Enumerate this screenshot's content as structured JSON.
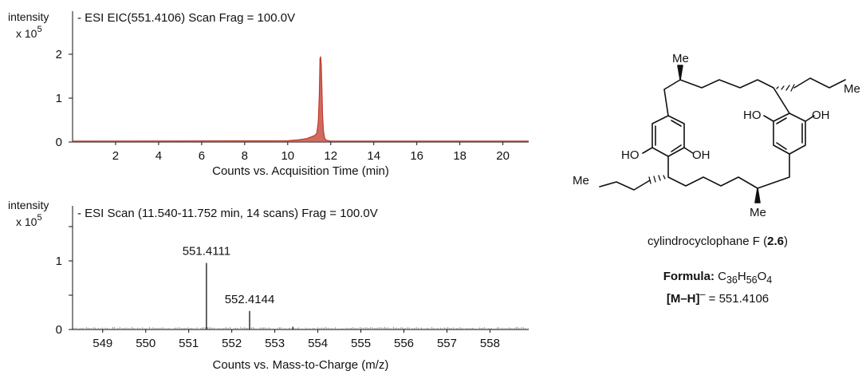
{
  "chart_data": [
    {
      "type": "area",
      "title": "- ESI EIC(551.4106) Scan Frag = 100.0V",
      "xlabel": "Counts vs. Acquisition Time (min)",
      "ylabel_line1": "intensity",
      "ylabel_line2": "x 10",
      "ylabel_exp": "5",
      "xlim": [
        0,
        21.2
      ],
      "ylim": [
        0,
        2.2
      ],
      "x_ticks": [
        2,
        4,
        6,
        8,
        10,
        12,
        14,
        16,
        18,
        20
      ],
      "y_ticks": [
        0,
        1,
        2
      ],
      "color": "#c0392b",
      "series": [
        {
          "x": [
            0,
            10.0,
            10.5,
            10.9,
            11.1,
            11.25,
            11.35,
            11.42,
            11.47,
            11.5,
            11.53,
            11.56,
            11.59,
            11.62,
            11.66,
            11.72,
            11.8,
            12.0,
            21.2
          ],
          "y": [
            0.02,
            0.03,
            0.05,
            0.08,
            0.12,
            0.15,
            0.2,
            0.45,
            1.1,
            1.9,
            1.95,
            1.75,
            1.2,
            0.6,
            0.25,
            0.08,
            0.04,
            0.02,
            0.02
          ]
        }
      ]
    },
    {
      "type": "bar",
      "title": "- ESI Scan (11.540-11.752 min, 14 scans) Frag = 100.0V",
      "xlabel": "Counts vs. Mass-to-Charge (m/z)",
      "ylabel_line1": "intensity",
      "ylabel_line2": "x 10",
      "ylabel_exp": "5",
      "xlim": [
        548.3,
        558.9
      ],
      "ylim": [
        0,
        1.6
      ],
      "x_ticks": [
        549,
        550,
        551,
        552,
        553,
        554,
        555,
        556,
        557,
        558
      ],
      "y_ticks": [
        0,
        1
      ],
      "peaks": [
        {
          "mz": 551.4111,
          "intensity": 0.97,
          "label": "551.4111"
        },
        {
          "mz": 552.4144,
          "intensity": 0.27,
          "label": "552.4144"
        },
        {
          "mz": 553.42,
          "intensity": 0.04,
          "label": ""
        }
      ]
    }
  ],
  "structure": {
    "substituents": {
      "me_top": "Me",
      "me_right": "Me",
      "me_left": "Me",
      "me_bottom": "Me",
      "ho_left": "HO",
      "oh_left": "OH",
      "ho_right": "HO",
      "oh_right": "OH"
    },
    "name": "cylindrocyclophane F (",
    "compound_number": "2.6",
    "name_close": ")",
    "formula_label": "Formula:",
    "formula": {
      "c": "C",
      "c_n": "36",
      "h": "H",
      "h_n": "56",
      "o": "O",
      "o_n": "4"
    },
    "ion_label": "[M–H]",
    "ion_charge": "–",
    "ion_value": " = 551.4106"
  }
}
